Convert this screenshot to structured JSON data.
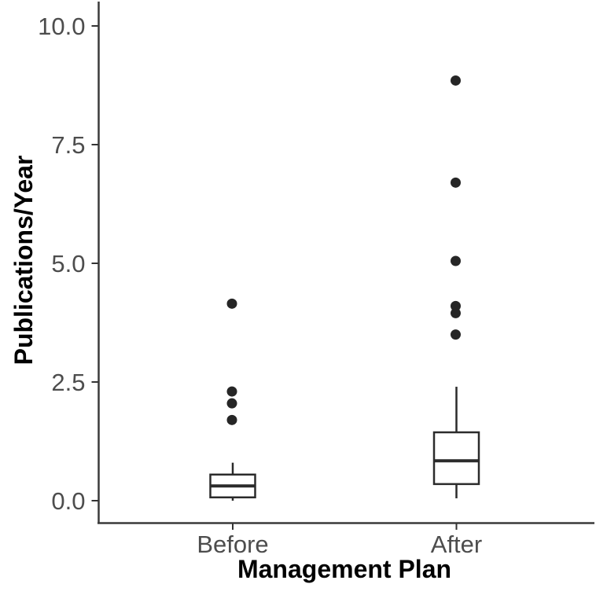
{
  "chart_data": {
    "type": "boxplot",
    "title": "",
    "xlabel": "Management Plan",
    "ylabel": "Publications/Year",
    "categories": [
      "Before",
      "After"
    ],
    "y_ticks": [
      {
        "value": 0.0,
        "label": "0.0"
      },
      {
        "value": 2.5,
        "label": "2.5"
      },
      {
        "value": 5.0,
        "label": "5.0"
      },
      {
        "value": 7.5,
        "label": "7.5"
      },
      {
        "value": 10.0,
        "label": "10.0"
      }
    ],
    "ylim": [
      -0.4,
      10.5
    ],
    "grid": false,
    "legend": "none",
    "series": [
      {
        "name": "Before",
        "whisker_low": 0.0,
        "q1": 0.07,
        "median": 0.31,
        "q3": 0.55,
        "whisker_high": 0.8,
        "outliers": [
          1.7,
          2.05,
          2.3,
          4.15
        ]
      },
      {
        "name": "After",
        "whisker_low": 0.05,
        "q1": 0.35,
        "median": 0.84,
        "q3": 1.44,
        "whisker_high": 2.4,
        "outliers": [
          3.5,
          3.95,
          4.1,
          5.05,
          6.7,
          8.85
        ]
      }
    ],
    "colors": {
      "background": "#ffffff",
      "axis_line": "#3a3a3a",
      "tick_mark": "#333333",
      "tick_label": "#4d4d4d",
      "axis_title": "#000000",
      "box_stroke": "#2b2b2b",
      "box_fill": "#ffffff",
      "point": "#262626"
    }
  }
}
